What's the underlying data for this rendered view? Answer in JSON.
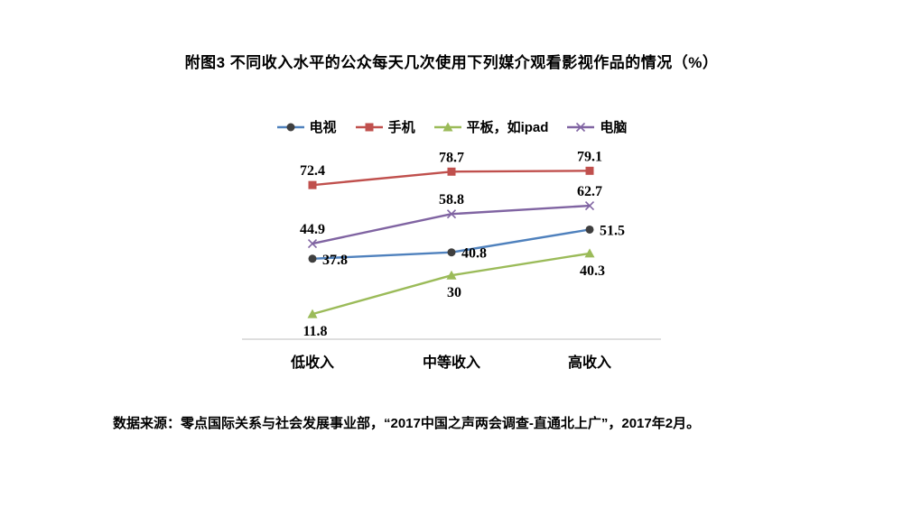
{
  "title": "附图3 不同收入水平的公众每天几次使用下列媒介观看影视作品的情况（%）",
  "source_note": "数据来源：零点国际关系与社会发展事业部，“2017中国之声两会调查-直通北上广”，2017年2月。",
  "chart_data": {
    "type": "line",
    "categories": [
      "低收入",
      "中等收入",
      "高收入"
    ],
    "series": [
      {
        "name": "电视",
        "values": [
          37.8,
          40.8,
          51.5
        ],
        "color": "#4F81BD",
        "marker": "circle",
        "marker_color": "#3F3F3F",
        "label_pos": "right"
      },
      {
        "name": "手机",
        "values": [
          72.4,
          78.7,
          79.1
        ],
        "color": "#C0504D",
        "marker": "square",
        "marker_color": "#C0504D",
        "label_pos": "above"
      },
      {
        "name": "平板，如ipad",
        "values": [
          11.8,
          30,
          40.3
        ],
        "color": "#9BBB59",
        "marker": "triangle",
        "marker_color": "#9BBB59",
        "label_pos": "below"
      },
      {
        "name": "电脑",
        "values": [
          44.9,
          58.8,
          62.7
        ],
        "color": "#8064A2",
        "marker": "x",
        "marker_color": "#8064A2",
        "label_pos": "above"
      }
    ],
    "ylim": [
      0,
      90
    ],
    "grid": false,
    "y_axis_visible": false,
    "legend_position": "top",
    "data_labels": true,
    "axis_color": "#C9C9C9",
    "text_color": "#000000",
    "background_color": "#ffffff"
  }
}
